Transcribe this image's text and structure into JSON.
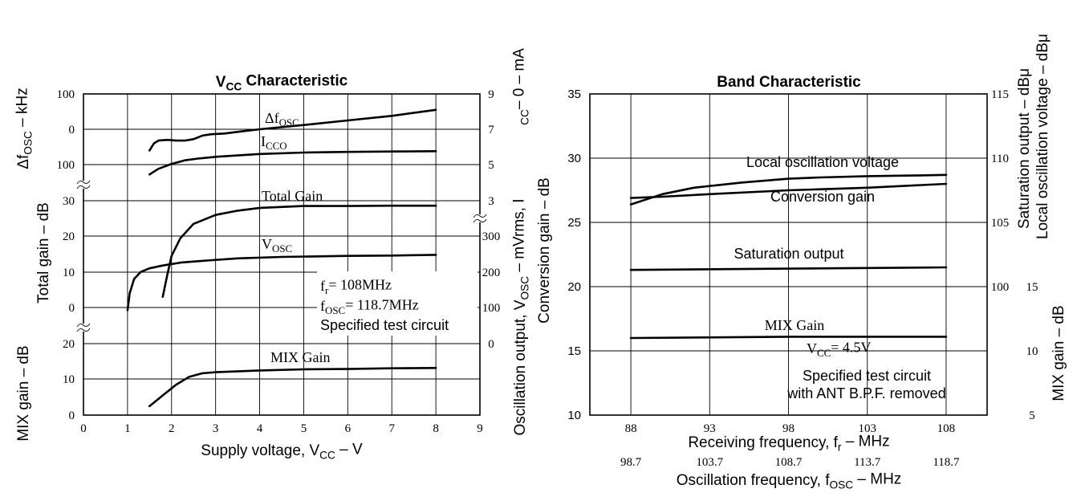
{
  "chart_data": [
    {
      "type": "line",
      "title": "V",
      "title_sub": "CC",
      "title_rest": " Characteristic",
      "xlabel": "Supply voltage, V",
      "xlabel_sub": "CC",
      "xlabel_rest": " – V",
      "xlim": [
        0,
        9
      ],
      "x_ticks": [
        "0",
        "1",
        "2",
        "3",
        "4",
        "5",
        "6",
        "7",
        "8",
        "9"
      ],
      "left_axis_labels": [
        {
          "main": "Δf",
          "sub": "OSC",
          "rest": " – kHz"
        },
        {
          "main": "Total gain – dB",
          "sub": "",
          "rest": ""
        },
        {
          "main": "MIX gain – dB",
          "sub": "",
          "rest": ""
        }
      ],
      "right_axis_labels": [
        {
          "main": "Oscillation output, V",
          "sub": "OSC",
          "rest": " – mVrms, I"
        },
        {
          "main": "",
          "sub": "CC",
          "rest": "– 0 – mA"
        }
      ],
      "left_ticks_top": [
        "100",
        "0",
        "100"
      ],
      "left_ticks_mid": [
        "30",
        "20",
        "10",
        "0"
      ],
      "left_ticks_bottom": [
        "20",
        "10",
        "0"
      ],
      "right_ticks_top": [
        "9",
        "7",
        "5",
        "3"
      ],
      "right_ticks_mid": [
        "300",
        "200",
        "100",
        "0"
      ],
      "panels": {
        "top": {
          "ylim": [
            -100,
            100
          ]
        },
        "mid": {
          "ylim": [
            0,
            30
          ]
        },
        "bottom": {
          "ylim": [
            0,
            20
          ]
        }
      },
      "series": [
        {
          "name": "Δf",
          "name_sub": "OSC",
          "panel": "top",
          "x": [
            1.5,
            1.6,
            1.7,
            1.9,
            2.1,
            2.3,
            2.5,
            2.7,
            2.9,
            3.2,
            3.6,
            4.0,
            5.0,
            6.0,
            7.0,
            8.0
          ],
          "y": [
            -60,
            -40,
            -32,
            -30,
            -32,
            -32,
            -28,
            -18,
            -14,
            -12,
            -6,
            0,
            12,
            25,
            38,
            55
          ]
        },
        {
          "name": "I",
          "name_sub": "CCO",
          "panel": "top",
          "x": [
            1.5,
            1.7,
            2.0,
            2.3,
            2.6,
            3.0,
            3.5,
            4.0,
            5.0,
            6.0,
            7.0,
            8.0
          ],
          "y": [
            -128,
            -112,
            -98,
            -88,
            -83,
            -78,
            -74,
            -70,
            -66,
            -64,
            -63,
            -62
          ]
        },
        {
          "name": "Total Gain",
          "name_sub": "",
          "panel": "mid",
          "x": [
            1.8,
            1.9,
            2.0,
            2.2,
            2.5,
            3.0,
            3.5,
            4.0,
            5.0,
            6.0,
            7.0,
            8.0
          ],
          "y": [
            3,
            9,
            14.5,
            19.5,
            23.5,
            26,
            27.2,
            28,
            28.5,
            28.5,
            28.6,
            28.6
          ]
        },
        {
          "name": "V",
          "name_sub": "OSC",
          "panel": "mid",
          "x": [
            1.0,
            1.05,
            1.15,
            1.3,
            1.5,
            1.8,
            2.2,
            2.8,
            3.5,
            4.5,
            6.0,
            7.0,
            8.0
          ],
          "y": [
            -0.8,
            4,
            8,
            10,
            11,
            11.8,
            12.6,
            13.2,
            13.8,
            14.2,
            14.5,
            14.6,
            14.8
          ]
        },
        {
          "name": "MIX Gain",
          "name_sub": "",
          "panel": "bottom",
          "x": [
            1.5,
            1.8,
            2.1,
            2.4,
            2.7,
            3.0,
            4.0,
            5.0,
            6.0,
            7.0,
            8.0
          ],
          "y": [
            2.5,
            5.5,
            8.5,
            10.7,
            11.7,
            12.0,
            12.5,
            12.8,
            12.9,
            13.1,
            13.2
          ]
        }
      ],
      "annotations": [
        {
          "main": "f",
          "sub": "r",
          "rest": "= 108MHz"
        },
        {
          "main": "f",
          "sub": "OSC",
          "rest": "= 118.7MHz"
        },
        {
          "main": "Specified test circuit",
          "sub": "",
          "rest": ""
        }
      ]
    },
    {
      "type": "line",
      "title": "Band Characteristic",
      "xlabel": "Receiving frequency, f",
      "xlabel_sub": "r",
      "xlabel_rest": " – MHz",
      "x2label": "Oscillation frequency, f",
      "x2label_sub": "OSC",
      "x2label_rest": " – MHz",
      "xlim": [
        85.4,
        110.6
      ],
      "x_ticks": [
        "88",
        "93",
        "98",
        "103",
        "108"
      ],
      "x_ticks_values": [
        88,
        93,
        98,
        103,
        108
      ],
      "x2_ticks": [
        "98.7",
        "103.7",
        "108.7",
        "113.7",
        "118.7"
      ],
      "ylabel": "Conversion gain – dB",
      "ylim": [
        10,
        35
      ],
      "y_ticks": [
        "35",
        "30",
        "25",
        "20",
        "15",
        "10"
      ],
      "right_axis_labels": [
        "Saturation output – dBμ",
        "Local oscillation voltage – dBμ",
        "MIX gain – dB"
      ],
      "right_ticks_1": [
        "115",
        "110",
        "105",
        "100"
      ],
      "right_ticks_2": [
        "15",
        "10",
        "5"
      ],
      "series": [
        {
          "name": "Local oscillation voltage",
          "x": [
            88,
            90,
            92,
            95,
            98,
            100,
            103,
            106,
            108
          ],
          "y": [
            26.4,
            27.2,
            27.7,
            28.1,
            28.4,
            28.5,
            28.6,
            28.65,
            28.7
          ]
        },
        {
          "name": "Conversion gain",
          "x": [
            88,
            90,
            93,
            98,
            103,
            108
          ],
          "y": [
            26.9,
            27.0,
            27.2,
            27.5,
            27.7,
            28.0
          ]
        },
        {
          "name": "Saturation output",
          "x": [
            88,
            98,
            108
          ],
          "y": [
            21.3,
            21.4,
            21.5
          ]
        },
        {
          "name": "MIX Gain",
          "x": [
            88,
            98,
            108
          ],
          "y": [
            16.0,
            16.1,
            16.1
          ]
        }
      ],
      "annotations": [
        {
          "main": "V",
          "sub": "CC",
          "rest": "= 4.5V"
        },
        {
          "main": "Specified test circuit",
          "sub": "",
          "rest": ""
        },
        {
          "main": "with ANT B.P.F. removed",
          "sub": "",
          "rest": ""
        }
      ]
    }
  ]
}
